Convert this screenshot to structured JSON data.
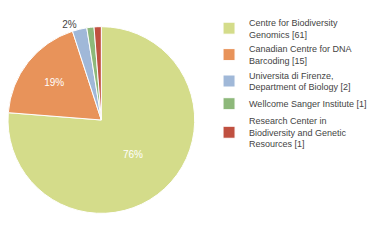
{
  "chart_data": {
    "type": "pie",
    "categories": [
      "Centre for Biodiversity\nGenomics [61]",
      "Canadian Centre for DNA\nBarcoding [15]",
      "Universita di Firenze,\nDepartment of Biology [2]",
      "Wellcome Sanger Institute [1]",
      "Research Center in\nBiodiversity and Genetic\nResources [1]"
    ],
    "values": [
      76.25,
      18.75,
      2.5,
      1.25,
      1.25
    ],
    "value_labels": [
      "76%",
      "19%",
      "2%",
      null,
      null
    ],
    "colors": [
      "#d4dc8a",
      "#e8935a",
      "#a0b8d8",
      "#8db87a",
      "#c05040"
    ],
    "legend": "right"
  }
}
